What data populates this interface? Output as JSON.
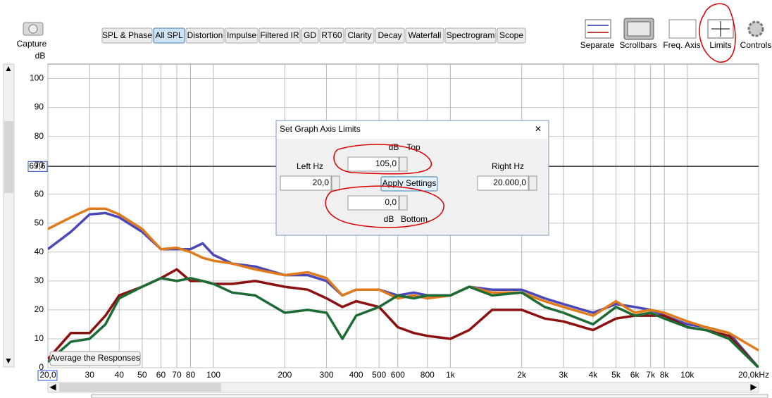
{
  "toolbar": {
    "capture": "Capture",
    "tabs": [
      "SPL & Phase",
      "All SPL",
      "Distortion",
      "Impulse",
      "Filtered IR",
      "GD",
      "RT60",
      "Clarity",
      "Decay",
      "Waterfall",
      "Spectrogram",
      "Scope"
    ],
    "selected_tab": 1,
    "buttons": [
      "Separate",
      "Scrollbars",
      "Freq. Axis",
      "Limits",
      "Controls"
    ]
  },
  "average_button": "Average the Responses",
  "dialog": {
    "title": "Set Graph Axis Limits",
    "top_unit": "dB",
    "top_label": "Top",
    "top_value": "105,0",
    "left_label": "Left Hz",
    "left_value": "20,0",
    "apply": "Apply Settings",
    "right_label": "Right Hz",
    "right_value": "20.000,0",
    "bottom_value": "0,0",
    "bottom_unit": "dB",
    "bottom_label": "Bottom"
  },
  "chart_data": {
    "type": "line",
    "y_label": "dB",
    "xscale": "log",
    "grid": true,
    "x": [
      20,
      25,
      30,
      35,
      40,
      50,
      60,
      70,
      80,
      90,
      100,
      120,
      150,
      200,
      250,
      300,
      350,
      400,
      500,
      600,
      700,
      800,
      1000,
      1200,
      1500,
      2000,
      2500,
      3000,
      4000,
      5000,
      6000,
      7000,
      8000,
      10000,
      12000,
      15000,
      20000
    ],
    "xlim": [
      20,
      20000
    ],
    "ylim": [
      0,
      105
    ],
    "xticks": [
      {
        "value": 20,
        "label": "20,0"
      },
      30,
      40,
      50,
      60,
      70,
      80,
      100,
      200,
      300,
      400,
      500,
      600,
      800,
      {
        "value": 1000,
        "label": "1k"
      },
      {
        "value": 2000,
        "label": "2k"
      },
      {
        "value": 3000,
        "label": "3k"
      },
      {
        "value": 4000,
        "label": "4k"
      },
      {
        "value": 5000,
        "label": "5k"
      },
      {
        "value": 6000,
        "label": "6k"
      },
      {
        "value": 7000,
        "label": "7k"
      },
      {
        "value": 8000,
        "label": "8k"
      },
      {
        "value": 10000,
        "label": "10k"
      },
      {
        "value": 20000,
        "label": "20,0kHz"
      }
    ],
    "yticks": [
      0,
      10,
      20,
      30,
      40,
      50,
      60,
      70,
      80,
      90,
      100
    ],
    "cursor": {
      "value": 69.6,
      "label": "69,6"
    },
    "series": [
      {
        "color": "#4a48b8",
        "values": [
          41,
          47,
          53,
          53.5,
          52,
          47,
          41,
          41,
          41,
          43,
          39,
          36,
          35,
          32,
          32,
          30,
          25,
          27,
          27,
          25,
          26,
          25,
          25,
          28,
          27,
          27,
          24,
          22,
          19,
          22,
          21,
          20,
          18,
          15,
          14,
          12,
          0
        ]
      },
      {
        "color": "#e07b1a",
        "values": [
          48,
          52,
          55,
          55,
          53,
          48,
          41,
          41.5,
          40,
          38,
          37,
          36,
          34,
          32,
          33,
          31,
          25,
          27,
          27,
          24,
          25,
          24,
          25,
          28,
          26,
          26,
          23,
          21,
          18,
          23,
          19,
          20,
          19,
          16,
          14,
          12,
          6
        ]
      },
      {
        "color": "#8b1010",
        "values": [
          3,
          12,
          12,
          18,
          25,
          28,
          31,
          34,
          30,
          30,
          29,
          29,
          30,
          28,
          27,
          24,
          21,
          23,
          21,
          14,
          12,
          11,
          10,
          13,
          20,
          20,
          17,
          16,
          13,
          17,
          18,
          18,
          18,
          14,
          13,
          11,
          0
        ]
      },
      {
        "color": "#1c6b34",
        "values": [
          2,
          9,
          10,
          15,
          24,
          28,
          31,
          30,
          31,
          30,
          29,
          26,
          25,
          19,
          20,
          19,
          10,
          18,
          21,
          25,
          24,
          25,
          25,
          28,
          25,
          26,
          21,
          19,
          15,
          21,
          18,
          19,
          17,
          14,
          13,
          10,
          0
        ]
      }
    ]
  }
}
